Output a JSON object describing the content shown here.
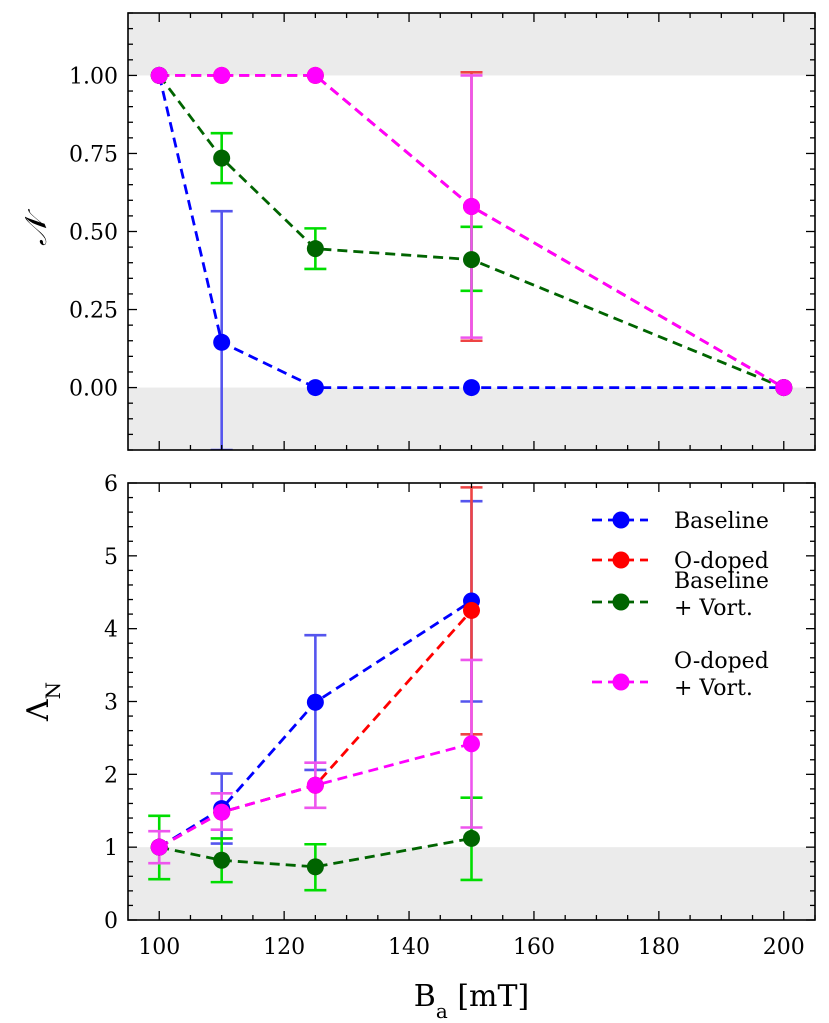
{
  "chart_data": [
    {
      "type": "line",
      "panel": "top",
      "ylabel": "𝒩",
      "xlim": [
        95,
        205
      ],
      "ylim": [
        -0.2,
        1.2
      ],
      "xticks": [
        100,
        120,
        140,
        160,
        180,
        200
      ],
      "yticks": [
        0.0,
        0.25,
        0.5,
        0.75,
        1.0
      ],
      "ytick_labels": [
        "0.00",
        "0.25",
        "0.50",
        "0.75",
        "1.00"
      ],
      "shaded_bands": [
        [
          1.0,
          1.2
        ],
        [
          -0.2,
          0.0
        ]
      ],
      "series": [
        {
          "name": "Baseline",
          "color": "#0000ff",
          "errcolor": "#5555ee",
          "points": [
            {
              "x": 100,
              "y": 1.0
            },
            {
              "x": 110,
              "y": 0.145,
              "err_low": -0.2,
              "err_high": 0.565
            },
            {
              "x": 125,
              "y": 0.0
            },
            {
              "x": 150,
              "y": 0.0
            },
            {
              "x": 200,
              "y": 0.0
            }
          ]
        },
        {
          "name": "O-doped",
          "color": "#ff0000",
          "errcolor": "#ee4444",
          "points": [
            {
              "x": 100,
              "y": 1.0
            },
            {
              "x": 110,
              "y": 1.0
            },
            {
              "x": 125,
              "y": 1.0
            },
            {
              "x": 150,
              "y": 0.58,
              "err_low": 0.15,
              "err_high": 1.01
            },
            {
              "x": 200,
              "y": 0.0
            }
          ]
        },
        {
          "name": "Baseline + Vort.",
          "color": "#006400",
          "errcolor": "#00dd00",
          "points": [
            {
              "x": 100,
              "y": 1.0
            },
            {
              "x": 110,
              "y": 0.735,
              "err_low": 0.655,
              "err_high": 0.815
            },
            {
              "x": 125,
              "y": 0.445,
              "err_low": 0.38,
              "err_high": 0.51
            },
            {
              "x": 150,
              "y": 0.41,
              "err_low": 0.31,
              "err_high": 0.515
            },
            {
              "x": 200,
              "y": 0.0
            }
          ]
        },
        {
          "name": "O-doped + Vort.",
          "color": "#ff00ff",
          "errcolor": "#ee55ee",
          "points": [
            {
              "x": 100,
              "y": 1.0
            },
            {
              "x": 110,
              "y": 1.0
            },
            {
              "x": 125,
              "y": 1.0
            },
            {
              "x": 150,
              "y": 0.58,
              "err_low": 0.16,
              "err_high": 1.0
            },
            {
              "x": 200,
              "y": 0.0
            }
          ]
        }
      ]
    },
    {
      "type": "line",
      "panel": "bottom",
      "ylabel": "ΛN",
      "ylabel_main": "Λ",
      "ylabel_sub": "N",
      "xlabel": "Ba [mT]",
      "xlabel_main": "B",
      "xlabel_sub": "a",
      "xlabel_unit": " [mT]",
      "xlim": [
        95,
        205
      ],
      "ylim": [
        0,
        6
      ],
      "xticks": [
        100,
        120,
        140,
        160,
        180,
        200
      ],
      "xtick_labels": [
        "100",
        "120",
        "140",
        "160",
        "180",
        "200"
      ],
      "yticks": [
        0,
        1,
        2,
        3,
        4,
        5,
        6
      ],
      "ytick_labels": [
        "0",
        "1",
        "2",
        "3",
        "4",
        "5",
        "6"
      ],
      "shaded_bands": [
        [
          0,
          1
        ]
      ],
      "series": [
        {
          "name": "Baseline",
          "color": "#0000ff",
          "errcolor": "#5555ee",
          "points": [
            {
              "x": 100,
              "y": 1.0
            },
            {
              "x": 110,
              "y": 1.53,
              "err_low": 1.05,
              "err_high": 2.01
            },
            {
              "x": 125,
              "y": 2.99,
              "err_low": 2.06,
              "err_high": 3.91
            },
            {
              "x": 150,
              "y": 4.38,
              "err_low": 3.0,
              "err_high": 5.75
            }
          ]
        },
        {
          "name": "O-doped",
          "color": "#ff0000",
          "errcolor": "#ee4444",
          "points": [
            {
              "x": 100,
              "y": 1.0
            },
            {
              "x": 110,
              "y": 1.48
            },
            {
              "x": 125,
              "y": 1.85
            },
            {
              "x": 150,
              "y": 4.25,
              "err_low": 2.55,
              "err_high": 5.94
            }
          ]
        },
        {
          "name": "Baseline + Vort.",
          "color": "#006400",
          "errcolor": "#00dd00",
          "points": [
            {
              "x": 100,
              "y": 1.0,
              "err_low": 0.56,
              "err_high": 1.43
            },
            {
              "x": 110,
              "y": 0.82,
              "err_low": 0.52,
              "err_high": 1.12
            },
            {
              "x": 125,
              "y": 0.73,
              "err_low": 0.41,
              "err_high": 1.04
            },
            {
              "x": 150,
              "y": 1.12,
              "err_low": 0.55,
              "err_high": 1.68
            }
          ]
        },
        {
          "name": "O-doped + Vort.",
          "color": "#ff00ff",
          "errcolor": "#ee55ee",
          "points": [
            {
              "x": 100,
              "y": 1.0,
              "err_low": 0.78,
              "err_high": 1.22
            },
            {
              "x": 110,
              "y": 1.48,
              "err_low": 1.24,
              "err_high": 1.74
            },
            {
              "x": 125,
              "y": 1.85,
              "err_low": 1.54,
              "err_high": 2.16
            },
            {
              "x": 150,
              "y": 2.42,
              "err_low": 1.27,
              "err_high": 3.57
            }
          ]
        }
      ],
      "legend": {
        "placement": "upper-right",
        "entries": [
          {
            "lines": [
              "Baseline"
            ],
            "color": "#0000ff"
          },
          {
            "lines": [
              "O-doped"
            ],
            "color": "#ff0000"
          },
          {
            "lines": [
              "Baseline",
              "+ Vort."
            ],
            "color": "#006400"
          },
          {
            "lines": [
              "O-doped",
              "+ Vort."
            ],
            "color": "#ff00ff"
          }
        ]
      }
    }
  ]
}
